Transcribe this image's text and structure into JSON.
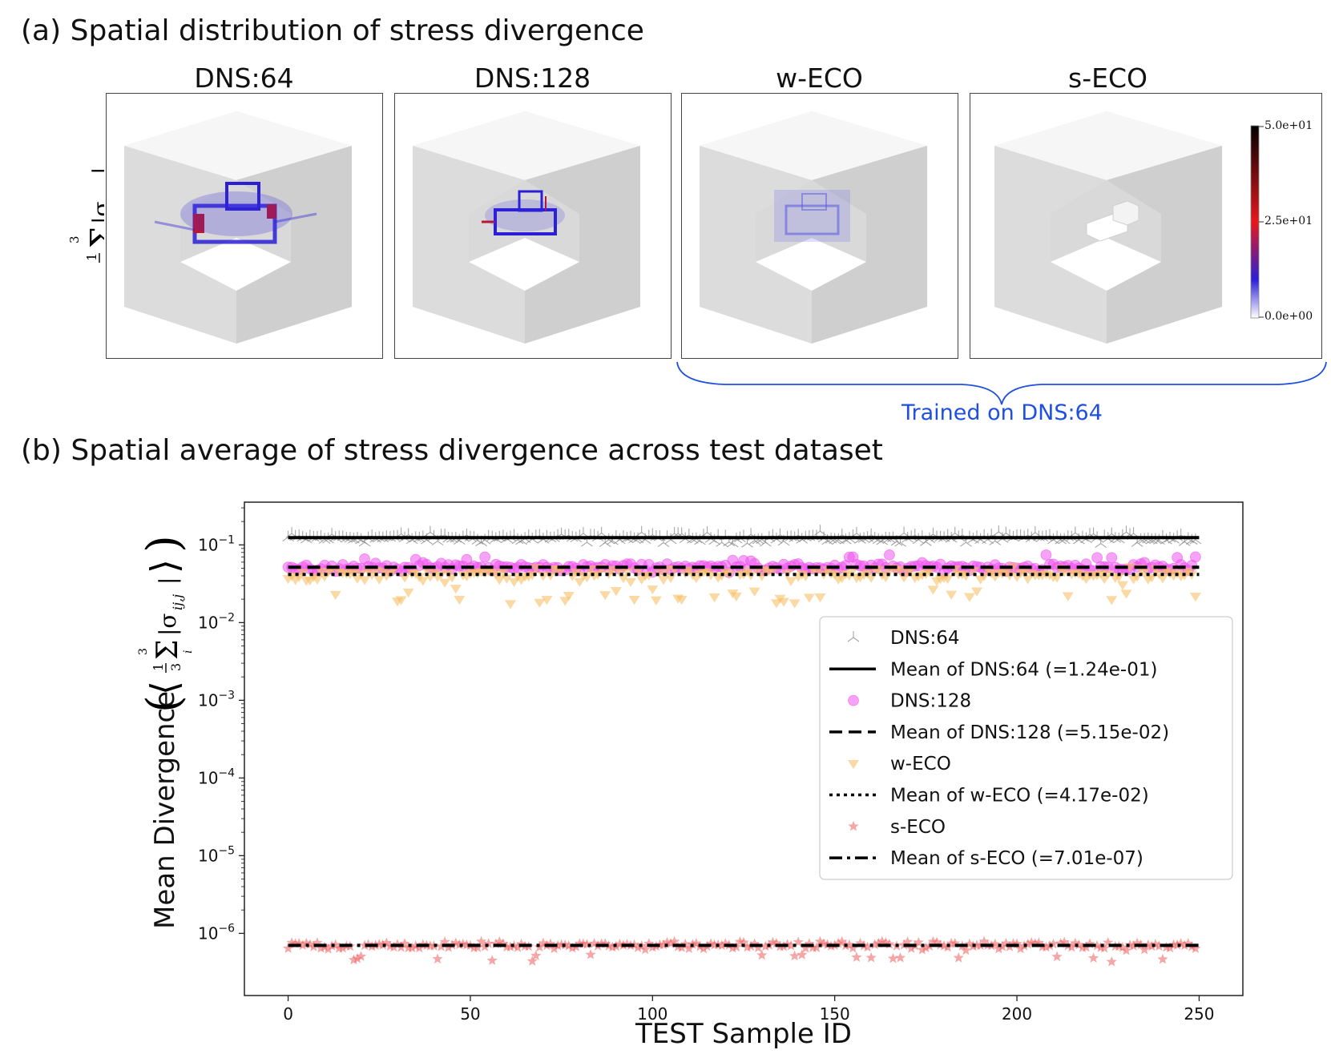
{
  "figure": {
    "part_a_heading": "(a) Spatial distribution of stress divergence",
    "part_b_heading": "(b) Spatial average of stress divergence across test dataset",
    "trained_note": "Trained on DNS:64",
    "row_label_math": "1/3 Σ_i^3 |σ_ij,j|"
  },
  "panels": [
    {
      "title": "DNS:64",
      "intensity": "high"
    },
    {
      "title": "DNS:128",
      "intensity": "medium"
    },
    {
      "title": "w-ECO",
      "intensity": "low"
    },
    {
      "title": "s-ECO",
      "intensity": "none"
    }
  ],
  "colorbar": {
    "ticks": [
      "5.0e+01",
      "2.5e+01",
      "0.0e+00"
    ],
    "colors": [
      "#000000",
      "#e8171c",
      "#2a1fd6",
      "#ffffff"
    ]
  },
  "chart_data": {
    "type": "scatter",
    "xlabel": "TEST Sample ID",
    "ylabel": "Mean Divergence",
    "ylabel_math": "⟨ 1/3 Σ_i^3 |σ_ij,j| ⟩",
    "x_range": [
      -12,
      262
    ],
    "y_range_log10": [
      -6.8,
      -0.45
    ],
    "y_scale": "log",
    "x_ticks": [
      0,
      50,
      100,
      150,
      200,
      250
    ],
    "y_ticks": [
      "10^-1",
      "10^-2",
      "10^-3",
      "10^-4",
      "10^-5",
      "10^-6"
    ],
    "legend_position": "center-right",
    "series": [
      {
        "name": "DNS:64",
        "marker": "tri_up",
        "color": "#888888",
        "center_value": 0.124,
        "spread_log10": 0.09,
        "count": 250
      },
      {
        "name": "DNS:128",
        "marker": "circle",
        "color": "#ee55ee",
        "center_value": 0.0515,
        "spread_log10": 0.07,
        "count": 250
      },
      {
        "name": "w-ECO",
        "marker": "triangle_down",
        "color": "#f7c067",
        "center_value": 0.0417,
        "spread_log10": 0.12,
        "count": 250
      },
      {
        "name": "s-ECO",
        "marker": "star",
        "color": "#ef6a6a",
        "center_value": 7.01e-07,
        "spread_log10": 0.07,
        "count": 250
      }
    ],
    "mean_lines": [
      {
        "label": "Mean of DNS:64 (=1.24e-01)",
        "value": 0.124,
        "style": "solid"
      },
      {
        "label": "Mean of DNS:128 (=5.15e-02)",
        "value": 0.0515,
        "style": "dashed"
      },
      {
        "label": "Mean of w-ECO (=4.17e-02)",
        "value": 0.0417,
        "style": "dotted"
      },
      {
        "label": "Mean of s-ECO (=7.01e-07)",
        "value": 7.01e-07,
        "style": "dashdot"
      }
    ]
  }
}
